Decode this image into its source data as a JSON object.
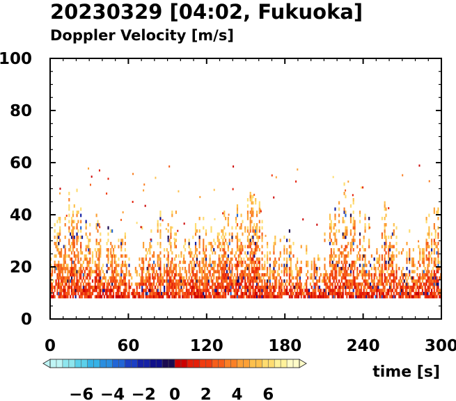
{
  "chart_data": {
    "type": "heatmap",
    "title": "20230329 [04:02, Fukuoka]",
    "subtitle": "Doppler Velocity [m/s]",
    "xlabel": "time [s]",
    "ylabel": "",
    "xlim": [
      0,
      300
    ],
    "ylim": [
      0,
      100
    ],
    "x_ticks": [
      0,
      60,
      120,
      180,
      240,
      300
    ],
    "y_ticks": [
      0,
      20,
      40,
      60,
      80,
      100
    ],
    "grid": false,
    "data_min_height": 8,
    "colorbar": {
      "range": [
        -8,
        8
      ],
      "ticks": [
        -6,
        -4,
        -2,
        0,
        2,
        4,
        6
      ],
      "tick_labels": [
        "−6",
        "−4",
        "−2",
        "0",
        "2",
        "4",
        "6"
      ],
      "colors": [
        "#bff5f5",
        "#8ee6ee",
        "#5cd0ea",
        "#36b2e6",
        "#2a8ee0",
        "#2266d6",
        "#1c40c4",
        "#1622a6",
        "#10108a",
        "#1a0a50",
        "#cc0000",
        "#e41e08",
        "#f03c10",
        "#f65e1a",
        "#fa8026",
        "#fca036",
        "#fdc04c",
        "#fedc70",
        "#fff29a",
        "#fffcc8"
      ]
    },
    "echo_tops": [
      {
        "t": 0,
        "h": 30
      },
      {
        "t": 10,
        "h": 40
      },
      {
        "t": 18,
        "h": 45
      },
      {
        "t": 28,
        "h": 38
      },
      {
        "t": 40,
        "h": 35
      },
      {
        "t": 55,
        "h": 28
      },
      {
        "t": 70,
        "h": 30
      },
      {
        "t": 90,
        "h": 38
      },
      {
        "t": 105,
        "h": 33
      },
      {
        "t": 120,
        "h": 35
      },
      {
        "t": 140,
        "h": 38
      },
      {
        "t": 150,
        "h": 48
      },
      {
        "t": 165,
        "h": 34
      },
      {
        "t": 180,
        "h": 30
      },
      {
        "t": 200,
        "h": 24
      },
      {
        "t": 215,
        "h": 38
      },
      {
        "t": 225,
        "h": 48
      },
      {
        "t": 240,
        "h": 33
      },
      {
        "t": 255,
        "h": 40
      },
      {
        "t": 270,
        "h": 32
      },
      {
        "t": 285,
        "h": 28
      },
      {
        "t": 295,
        "h": 45
      },
      {
        "t": 300,
        "h": 30
      }
    ]
  }
}
